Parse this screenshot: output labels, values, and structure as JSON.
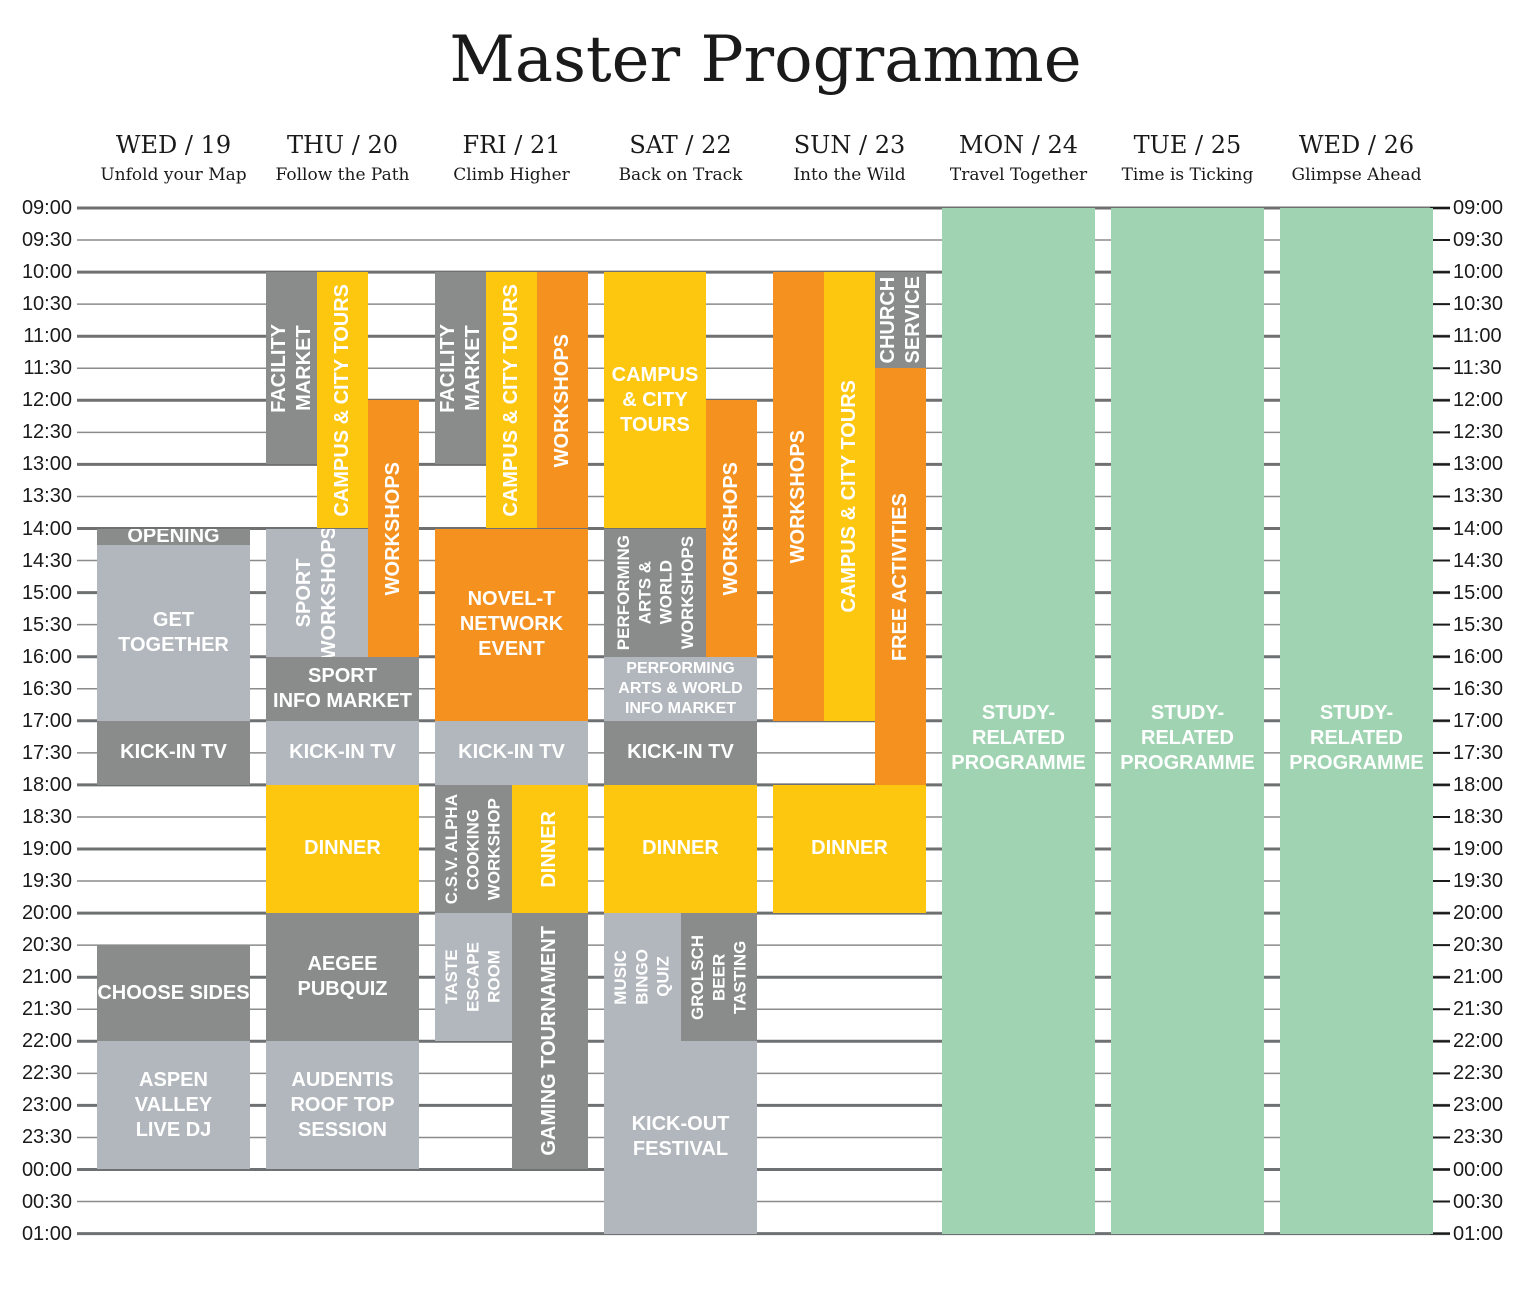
{
  "title": "Master Programme",
  "days": [
    {
      "name": "WED / 19",
      "subtitle": "Unfold your Map"
    },
    {
      "name": "THU / 20",
      "subtitle": "Follow the Path"
    },
    {
      "name": "FRI / 21",
      "subtitle": "Climb Higher"
    },
    {
      "name": "SAT / 22",
      "subtitle": "Back on Track"
    },
    {
      "name": "SUN / 23",
      "subtitle": "Into the Wild"
    },
    {
      "name": "MON / 24",
      "subtitle": "Travel Together"
    },
    {
      "name": "TUE / 25",
      "subtitle": "Time is Ticking"
    },
    {
      "name": "WED / 26",
      "subtitle": "Glimpse Ahead"
    }
  ],
  "chart_data": {
    "type": "schedule",
    "title": "Master Programme",
    "time_labels": [
      "09:00",
      "09:30",
      "10:00",
      "10:30",
      "11:00",
      "11:30",
      "12:00",
      "12:30",
      "13:00",
      "13:30",
      "14:00",
      "14:30",
      "15:00",
      "15:30",
      "16:00",
      "16:30",
      "17:00",
      "17:30",
      "18:00",
      "18:30",
      "19:00",
      "19:30",
      "20:00",
      "20:30",
      "21:00",
      "21:30",
      "22:00",
      "22:30",
      "23:00",
      "23:30",
      "00:00",
      "00:30",
      "01:00"
    ],
    "colors": {
      "gray": "#8a8c8c",
      "light": "#b1b7bc",
      "yellow": "#fdc70f",
      "orange": "#f4911f",
      "green": "#9fd3b1"
    },
    "events": [
      {
        "day": 0,
        "start": 10.0,
        "end": 10.5,
        "sub": 0,
        "subs": 1,
        "label": "OPENING",
        "color": "gray",
        "vertical": false
      },
      {
        "day": 0,
        "start": 10.5,
        "end": 16.0,
        "sub": 0,
        "subs": 1,
        "label": "GET\nTOGETHER",
        "color": "light",
        "vertical": false
      },
      {
        "day": 0,
        "start": 16.0,
        "end": 18.0,
        "sub": 0,
        "subs": 1,
        "label": "KICK-IN TV",
        "color": "gray",
        "vertical": false
      },
      {
        "day": 0,
        "start": 23.0,
        "end": 26.0,
        "sub": 0,
        "subs": 1,
        "label": "CHOOSE SIDES",
        "color": "gray",
        "vertical": false
      },
      {
        "day": 0,
        "start": 26.0,
        "end": 30.0,
        "sub": 0,
        "subs": 1,
        "label": "ASPEN\nVALLEY\nLIVE DJ",
        "color": "light",
        "vertical": false
      },
      {
        "day": 1,
        "start": 2.0,
        "end": 8.0,
        "sub": 0,
        "subs": 3,
        "label": "FACILITY\nMARKET",
        "color": "gray",
        "vertical": true
      },
      {
        "day": 1,
        "start": 2.0,
        "end": 10.0,
        "sub": 1,
        "subs": 3,
        "label": "CAMPUS & CITY TOURS",
        "color": "yellow",
        "vertical": true
      },
      {
        "day": 1,
        "start": 6.0,
        "end": 14.0,
        "sub": 2,
        "subs": 3,
        "label": "WORKSHOPS",
        "color": "orange",
        "vertical": true
      },
      {
        "day": 1,
        "start": 10.0,
        "end": 14.0,
        "sub": 0,
        "subs": 3,
        "span": 2,
        "label": "SPORT\nWORKSHOPS",
        "color": "light",
        "vertical": true
      },
      {
        "day": 1,
        "start": 14.0,
        "end": 16.0,
        "sub": 0,
        "subs": 1,
        "label": "SPORT\nINFO MARKET",
        "color": "gray",
        "vertical": false
      },
      {
        "day": 1,
        "start": 16.0,
        "end": 18.0,
        "sub": 0,
        "subs": 1,
        "label": "KICK-IN TV",
        "color": "light",
        "vertical": false
      },
      {
        "day": 1,
        "start": 18.0,
        "end": 22.0,
        "sub": 0,
        "subs": 1,
        "label": "DINNER",
        "color": "yellow",
        "vertical": false
      },
      {
        "day": 1,
        "start": 22.0,
        "end": 26.0,
        "sub": 0,
        "subs": 1,
        "label": "AEGEE\nPUBQUIZ",
        "color": "gray",
        "vertical": false
      },
      {
        "day": 1,
        "start": 26.0,
        "end": 30.0,
        "sub": 0,
        "subs": 1,
        "label": "AUDENTIS\nROOF TOP\nSESSION",
        "color": "light",
        "vertical": false
      },
      {
        "day": 2,
        "start": 2.0,
        "end": 8.0,
        "sub": 0,
        "subs": 3,
        "label": "FACILITY\nMARKET",
        "color": "gray",
        "vertical": true
      },
      {
        "day": 2,
        "start": 2.0,
        "end": 10.0,
        "sub": 1,
        "subs": 3,
        "label": "CAMPUS & CITY TOURS",
        "color": "yellow",
        "vertical": true
      },
      {
        "day": 2,
        "start": 2.0,
        "end": 10.0,
        "sub": 2,
        "subs": 3,
        "label": "WORKSHOPS",
        "color": "orange",
        "vertical": true
      },
      {
        "day": 2,
        "start": 10.0,
        "end": 16.0,
        "sub": 0,
        "subs": 1,
        "label": "NOVEL-T\nNETWORK\nEVENT",
        "color": "orange",
        "vertical": false
      },
      {
        "day": 2,
        "start": 16.0,
        "end": 18.0,
        "sub": 0,
        "subs": 1,
        "label": "KICK-IN TV",
        "color": "light",
        "vertical": false
      },
      {
        "day": 2,
        "start": 18.0,
        "end": 22.0,
        "sub": 0,
        "subs": 2,
        "label": "C.S.V. ALPHA\nCOOKING\nWORKSHOP",
        "color": "gray",
        "vertical": true
      },
      {
        "day": 2,
        "start": 18.0,
        "end": 22.0,
        "sub": 1,
        "subs": 2,
        "label": "DINNER",
        "color": "yellow",
        "vertical": true
      },
      {
        "day": 2,
        "start": 22.0,
        "end": 26.0,
        "sub": 0,
        "subs": 2,
        "label": "TASTE\nESCAPE\nROOM",
        "color": "light",
        "vertical": true
      },
      {
        "day": 2,
        "start": 22.0,
        "end": 30.0,
        "sub": 1,
        "subs": 2,
        "label": "GAMING TOURNAMENT",
        "color": "gray",
        "vertical": true
      },
      {
        "day": 3,
        "start": 2.0,
        "end": 10.0,
        "sub": 0,
        "subs": 3,
        "span": 2,
        "label": "CAMPUS\n& CITY\nTOURS",
        "color": "yellow",
        "vertical": false
      },
      {
        "day": 3,
        "start": 6.0,
        "end": 14.0,
        "sub": 2,
        "subs": 3,
        "label": "WORKSHOPS",
        "color": "orange",
        "vertical": true
      },
      {
        "day": 3,
        "start": 10.0,
        "end": 14.0,
        "sub": 0,
        "subs": 3,
        "span": 2,
        "label": "PERFORMING\nARTS &\nWORLD\nWORKSHOPS",
        "color": "gray",
        "vertical": true
      },
      {
        "day": 3,
        "start": 14.0,
        "end": 16.0,
        "sub": 0,
        "subs": 1,
        "label": "PERFORMING\nARTS & WORLD\nINFO MARKET",
        "color": "light",
        "vertical": false,
        "small": true
      },
      {
        "day": 3,
        "start": 16.0,
        "end": 18.0,
        "sub": 0,
        "subs": 1,
        "label": "KICK-IN TV",
        "color": "gray",
        "vertical": false
      },
      {
        "day": 3,
        "start": 18.0,
        "end": 22.0,
        "sub": 0,
        "subs": 1,
        "label": "DINNER",
        "color": "yellow",
        "vertical": false
      },
      {
        "day": 3,
        "start": 22.0,
        "end": 26.0,
        "sub": 0,
        "subs": 2,
        "label": "MUSIC\nBINGO\nQUIZ",
        "color": "light",
        "vertical": true
      },
      {
        "day": 3,
        "start": 22.0,
        "end": 26.0,
        "sub": 1,
        "subs": 2,
        "label": "GROLSCH\nBEER\nTASTING",
        "color": "gray",
        "vertical": true
      },
      {
        "day": 3,
        "start": 26.0,
        "end": 32.0,
        "sub": 0,
        "subs": 1,
        "label": "KICK-OUT\nFESTIVAL",
        "color": "light",
        "vertical": false
      },
      {
        "day": 4,
        "start": 2.0,
        "end": 16.0,
        "sub": 0,
        "subs": 3,
        "label": "WORKSHOPS",
        "color": "orange",
        "vertical": true
      },
      {
        "day": 4,
        "start": 2.0,
        "end": 16.0,
        "sub": 1,
        "subs": 3,
        "label": "CAMPUS & CITY TOURS",
        "color": "yellow",
        "vertical": true
      },
      {
        "day": 4,
        "start": 2.0,
        "end": 5.0,
        "sub": 2,
        "subs": 3,
        "label": "CHURCH\nSERVICE",
        "color": "gray",
        "vertical": true
      },
      {
        "day": 4,
        "start": 5.0,
        "end": 18.0,
        "sub": 2,
        "subs": 3,
        "label": "FREE ACTIVITIES",
        "color": "orange",
        "vertical": true
      },
      {
        "day": 4,
        "start": 18.0,
        "end": 22.0,
        "sub": 0,
        "subs": 1,
        "label": "DINNER",
        "color": "yellow",
        "vertical": false
      },
      {
        "day": 5,
        "start": 0.0,
        "end": 32.0,
        "sub": 0,
        "subs": 1,
        "label": "STUDY-\nRELATED\nPROGRAMME",
        "color": "green",
        "vertical": false,
        "valign": "center-high"
      },
      {
        "day": 6,
        "start": 0.0,
        "end": 32.0,
        "sub": 0,
        "subs": 1,
        "label": "STUDY-\nRELATED\nPROGRAMME",
        "color": "green",
        "vertical": false,
        "valign": "center-high"
      },
      {
        "day": 7,
        "start": 0.0,
        "end": 32.0,
        "sub": 0,
        "subs": 1,
        "label": "STUDY-\nRELATED\nPROGRAMME",
        "color": "green",
        "vertical": false,
        "valign": "center-high"
      }
    ]
  }
}
